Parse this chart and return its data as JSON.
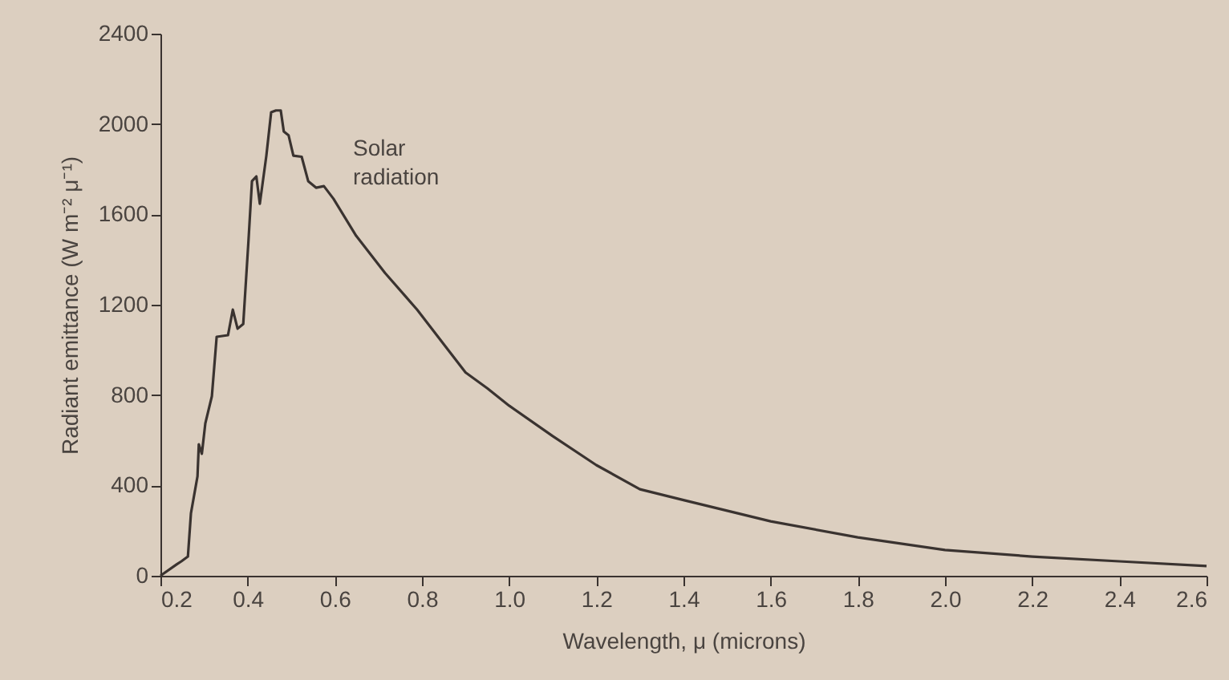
{
  "chart_data": {
    "type": "line",
    "xlabel": "Wavelength, μ (microns)",
    "ylabel": "Radiant emittance (W m⁻² μ⁻¹)",
    "x": [
      0.2,
      0.237,
      0.248,
      0.263,
      0.27,
      0.285,
      0.288,
      0.295,
      0.303,
      0.318,
      0.329,
      0.355,
      0.366,
      0.377,
      0.39,
      0.402,
      0.41,
      0.42,
      0.428,
      0.443,
      0.454,
      0.465,
      0.476,
      0.483,
      0.494,
      0.505,
      0.524,
      0.539,
      0.557,
      0.575,
      0.597,
      0.649,
      0.715,
      0.789,
      0.862,
      0.9,
      0.95,
      1.0,
      1.1,
      1.2,
      1.3,
      1.4,
      1.6,
      1.8,
      2.0,
      2.2,
      2.4,
      2.6
    ],
    "series": [
      {
        "color": "#3a3330",
        "values": [
          0,
          50,
          64,
          85,
          277,
          440,
          582,
          540,
          675,
          795,
          1058,
          1065,
          1178,
          1094,
          1115,
          1484,
          1747,
          1768,
          1647,
          1860,
          2052,
          2060,
          2060,
          1967,
          1950,
          1860,
          1855,
          1747,
          1718,
          1725,
          1669,
          1505,
          1341,
          1178,
          995,
          900,
          830,
          753,
          618,
          490,
          383,
          335,
          241,
          170,
          114,
          85,
          64,
          43
        ]
      }
    ],
    "xlim": [
      0.2,
      2.6
    ],
    "xticks": [
      0.2,
      0.4,
      0.6,
      0.8,
      {
        "value": 1.0,
        "label": "1.0"
      },
      1.2,
      1.4,
      1.6,
      1.8,
      {
        "value": 2.0,
        "label": "2.0"
      },
      2.2,
      2.4,
      2.6
    ],
    "ylim": [
      0,
      2400
    ],
    "yticks": [
      0,
      400,
      800,
      1200,
      1600,
      2000,
      2400
    ],
    "grid": false,
    "marker": "none",
    "line_style": "solid",
    "annotations": [
      "Solar radiation"
    ]
  }
}
